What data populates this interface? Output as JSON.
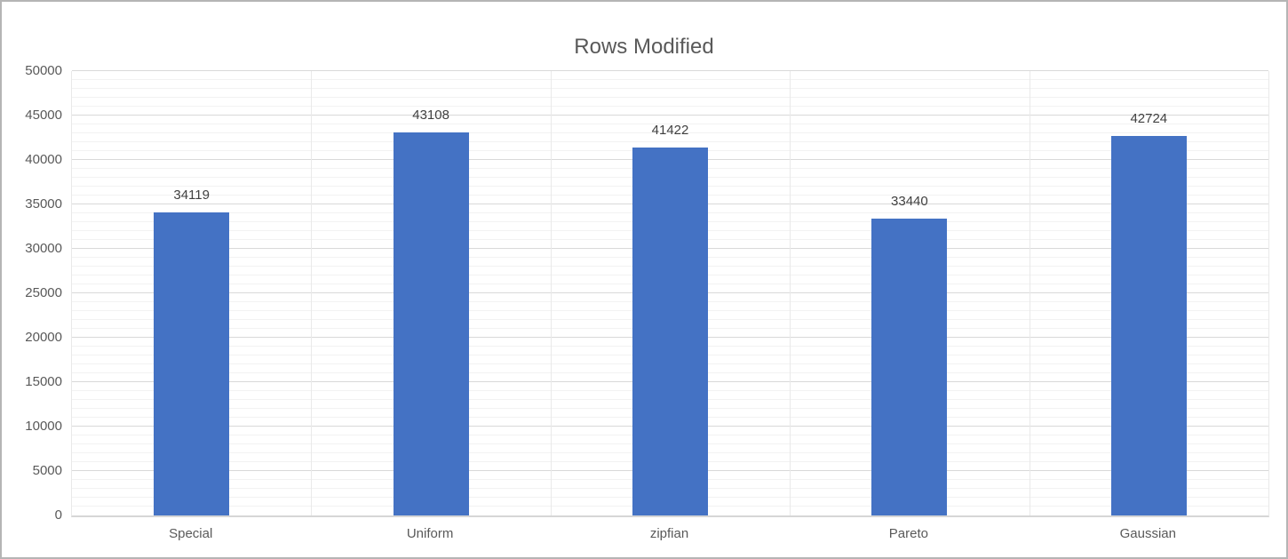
{
  "window": {
    "background": "#FFFFFF",
    "border_color": "#B5B5B5"
  },
  "chart_data": {
    "type": "bar",
    "title": "Rows Modified",
    "categories": [
      "Special",
      "Uniform",
      "zipfian",
      "Pareto",
      "Gaussian"
    ],
    "values": [
      34119,
      43108,
      41422,
      33440,
      42724
    ],
    "data_labels": [
      "34119",
      "43108",
      "41422",
      "33440",
      "42724"
    ],
    "xlabel": "",
    "ylabel": "",
    "ylim": [
      0,
      50000
    ],
    "y_major_step": 5000,
    "y_minor_step": 1000,
    "y_tick_labels": [
      "0",
      "5000",
      "10000",
      "15000",
      "20000",
      "25000",
      "30000",
      "35000",
      "40000",
      "45000",
      "50000"
    ],
    "legend": "none",
    "grid": "horizontal major and minor gridlines on, vertical category separator lines on",
    "colors": {
      "bar_fill": "#4472C4",
      "title_text": "#595959",
      "axis_text": "#595959",
      "data_label_text": "#404040",
      "major_gridline": "#D9D9D9",
      "minor_gridline": "#F2F2F2",
      "category_separator": "#E9E9E9",
      "axis_line": "#D6D6D6"
    }
  }
}
